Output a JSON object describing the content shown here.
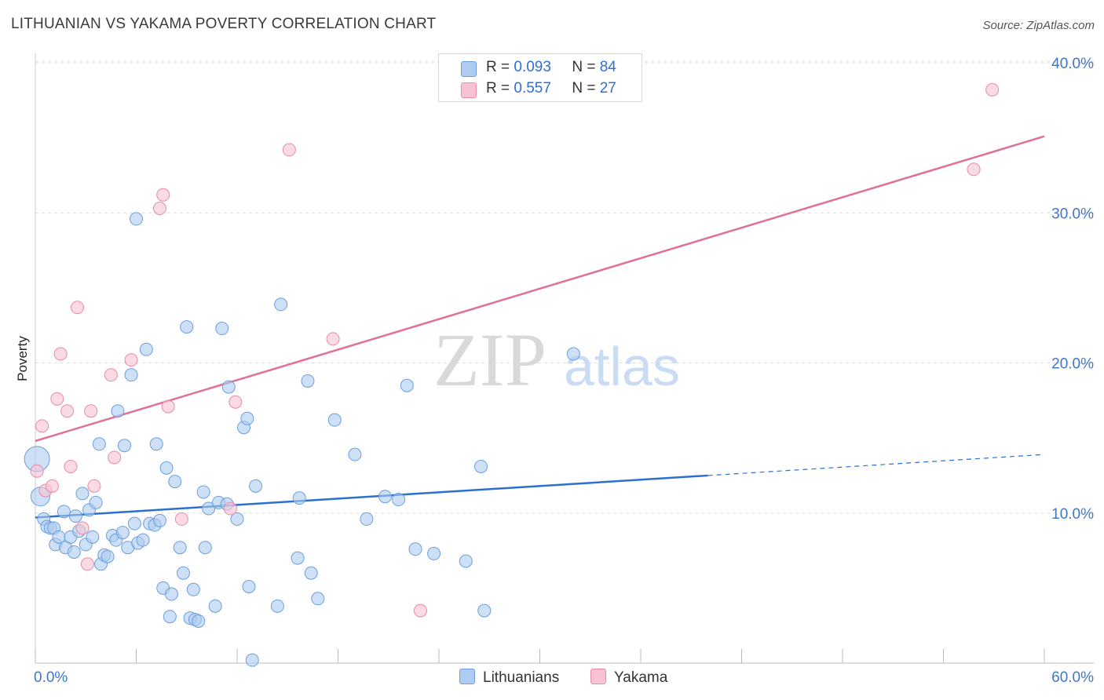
{
  "header": {
    "title": "LITHUANIAN VS YAKAMA POVERTY CORRELATION CHART",
    "source": "Source: ZipAtlas.com"
  },
  "colors": {
    "blue_fill": "#aecbf0",
    "blue_stroke": "#6a9edf",
    "blue_line": "#2a6fd1",
    "pink_fill": "#f7c3d2",
    "pink_stroke": "#e88aa8",
    "pink_line": "#e07098",
    "axis_text": "#3f77c7",
    "grid": "#dddddd"
  },
  "legend": {
    "rows": [
      {
        "r_label": "R =",
        "r_value": "0.093",
        "n_label": "N =",
        "n_value": "84"
      },
      {
        "r_label": "R =",
        "r_value": "0.557",
        "n_label": "N =",
        "n_value": "27"
      }
    ]
  },
  "bottom_legend": {
    "series1": "Lithuanians",
    "series2": "Yakama"
  },
  "watermark": {
    "part1": "ZIP",
    "part2": "atlas"
  },
  "chart_data": {
    "type": "scatter",
    "title": "LITHUANIAN VS YAKAMA POVERTY CORRELATION CHART",
    "xlabel": "",
    "ylabel": "Poverty",
    "xlim": [
      0,
      60
    ],
    "ylim": [
      0,
      40
    ],
    "x_tick_labels": [
      "0.0%",
      "60.0%"
    ],
    "y_tick_labels": [
      "10.0%",
      "20.0%",
      "30.0%",
      "40.0%"
    ],
    "y_ticks": [
      10,
      20,
      30,
      40
    ],
    "x_minor_ticks": [
      0,
      6,
      12,
      18,
      24,
      30,
      36,
      42,
      48,
      54,
      60
    ],
    "grid": true,
    "legend_position": "top-center",
    "series": [
      {
        "name": "Lithuanians",
        "color": "blue",
        "R": 0.093,
        "N": 84,
        "trend": {
          "x0": 0,
          "y0": 9.7,
          "x1": 40,
          "y1": 12.5,
          "dashed_to_x": 60,
          "dashed_to_y": 13.9
        },
        "points": [
          [
            0.1,
            13.6
          ],
          [
            0.3,
            11.1
          ],
          [
            0.5,
            9.6
          ],
          [
            0.7,
            9.1
          ],
          [
            0.9,
            9.0
          ],
          [
            1.1,
            9.0
          ],
          [
            1.2,
            7.9
          ],
          [
            1.4,
            8.4
          ],
          [
            1.7,
            10.1
          ],
          [
            1.8,
            7.7
          ],
          [
            2.1,
            8.4
          ],
          [
            2.3,
            7.4
          ],
          [
            2.4,
            9.8
          ],
          [
            2.6,
            8.8
          ],
          [
            2.8,
            11.3
          ],
          [
            3.0,
            7.9
          ],
          [
            3.2,
            10.2
          ],
          [
            3.4,
            8.4
          ],
          [
            3.6,
            10.7
          ],
          [
            3.8,
            14.6
          ],
          [
            3.9,
            6.6
          ],
          [
            4.1,
            7.2
          ],
          [
            4.3,
            7.1
          ],
          [
            4.6,
            8.5
          ],
          [
            4.8,
            8.2
          ],
          [
            4.9,
            16.8
          ],
          [
            5.2,
            8.7
          ],
          [
            5.3,
            14.5
          ],
          [
            5.5,
            7.7
          ],
          [
            5.7,
            19.2
          ],
          [
            5.9,
            9.3
          ],
          [
            6.0,
            29.6
          ],
          [
            6.1,
            8.0
          ],
          [
            6.4,
            8.2
          ],
          [
            6.6,
            20.9
          ],
          [
            6.8,
            9.3
          ],
          [
            7.1,
            9.2
          ],
          [
            7.2,
            14.6
          ],
          [
            7.4,
            9.5
          ],
          [
            7.6,
            5.0
          ],
          [
            7.8,
            13.0
          ],
          [
            8.0,
            3.1
          ],
          [
            8.1,
            4.6
          ],
          [
            8.3,
            12.1
          ],
          [
            8.6,
            7.7
          ],
          [
            8.8,
            6.0
          ],
          [
            9.0,
            22.4
          ],
          [
            9.2,
            3.0
          ],
          [
            9.4,
            4.9
          ],
          [
            9.5,
            2.9
          ],
          [
            9.7,
            2.8
          ],
          [
            10.0,
            11.4
          ],
          [
            10.1,
            7.7
          ],
          [
            10.3,
            10.3
          ],
          [
            10.7,
            3.8
          ],
          [
            10.9,
            10.7
          ],
          [
            11.1,
            22.3
          ],
          [
            11.4,
            10.6
          ],
          [
            11.5,
            18.4
          ],
          [
            12.0,
            9.6
          ],
          [
            12.4,
            15.7
          ],
          [
            12.6,
            16.3
          ],
          [
            12.7,
            5.1
          ],
          [
            12.9,
            0.2
          ],
          [
            13.1,
            11.8
          ],
          [
            14.4,
            3.8
          ],
          [
            14.6,
            23.9
          ],
          [
            15.6,
            7.0
          ],
          [
            15.7,
            11.0
          ],
          [
            16.2,
            18.8
          ],
          [
            16.4,
            6.0
          ],
          [
            16.8,
            4.3
          ],
          [
            17.8,
            16.2
          ],
          [
            19.0,
            13.9
          ],
          [
            19.7,
            9.6
          ],
          [
            20.8,
            11.1
          ],
          [
            21.6,
            10.9
          ],
          [
            22.1,
            18.5
          ],
          [
            22.6,
            7.6
          ],
          [
            23.7,
            7.3
          ],
          [
            25.6,
            6.8
          ],
          [
            26.5,
            13.1
          ],
          [
            26.7,
            3.5
          ],
          [
            32.0,
            20.6
          ]
        ]
      },
      {
        "name": "Yakama",
        "color": "pink",
        "R": 0.557,
        "N": 27,
        "trend": {
          "x0": 0,
          "y0": 14.8,
          "x1": 60,
          "y1": 35.1
        },
        "points": [
          [
            0.1,
            12.8
          ],
          [
            0.4,
            15.8
          ],
          [
            0.6,
            11.5
          ],
          [
            1.0,
            11.8
          ],
          [
            1.3,
            17.6
          ],
          [
            1.5,
            20.6
          ],
          [
            1.9,
            16.8
          ],
          [
            2.1,
            13.1
          ],
          [
            2.5,
            23.7
          ],
          [
            2.8,
            9.0
          ],
          [
            3.1,
            6.6
          ],
          [
            3.3,
            16.8
          ],
          [
            3.5,
            11.8
          ],
          [
            4.5,
            19.2
          ],
          [
            4.7,
            13.7
          ],
          [
            5.7,
            20.2
          ],
          [
            7.4,
            30.3
          ],
          [
            7.6,
            31.2
          ],
          [
            7.9,
            17.1
          ],
          [
            8.7,
            9.6
          ],
          [
            11.6,
            10.3
          ],
          [
            11.9,
            17.4
          ],
          [
            15.1,
            34.2
          ],
          [
            17.7,
            21.6
          ],
          [
            22.9,
            3.5
          ],
          [
            55.8,
            32.9
          ],
          [
            56.9,
            38.2
          ]
        ]
      }
    ]
  }
}
